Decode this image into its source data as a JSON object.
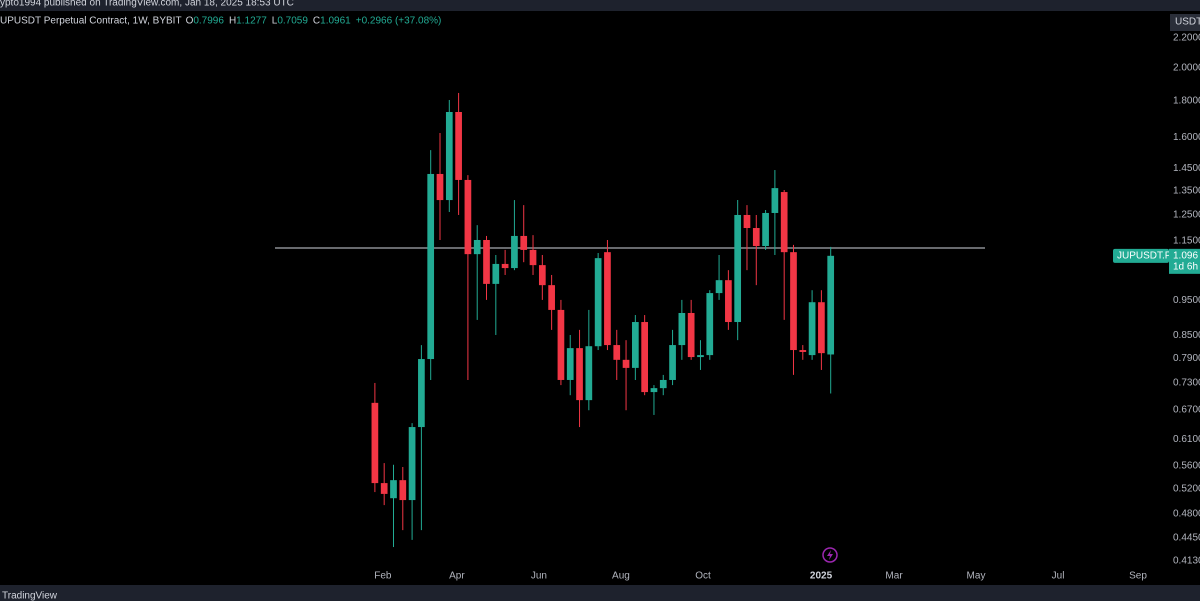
{
  "header": {
    "text": "ypto1994 published on TradingView.com, Jan 18, 2025 18:53 UTC"
  },
  "footer": {
    "brand": "TradingView"
  },
  "chart_data": {
    "type": "candlestick",
    "title": "UPUSDT Perpetual Contract, 1W, BYBIT",
    "legend": [
      {
        "label": "O",
        "value": 0.7996
      },
      {
        "label": "H",
        "value": 1.1277
      },
      {
        "label": "L",
        "value": 0.7059
      },
      {
        "label": "C",
        "value": 1.0961
      }
    ],
    "change": "+0.2966 (+37.08%)",
    "currency": "USDT",
    "symbol_tag": "JUPUSDT.P",
    "last_price": 1.096,
    "countdown": "1d 6h",
    "hline": 1.124,
    "log_scale": true,
    "grid": false,
    "up_color": "#22ab94",
    "down_color": "#f23645",
    "x": [
      0,
      1,
      2,
      3,
      4,
      5,
      6,
      7,
      8,
      9,
      10,
      11,
      12,
      13,
      14,
      15,
      16,
      17,
      18,
      19,
      20,
      21,
      22,
      23,
      24,
      25,
      26,
      27,
      28,
      29,
      30,
      31,
      32,
      33,
      34,
      35,
      36,
      37,
      38,
      39,
      40,
      41,
      42,
      43,
      44,
      45,
      46,
      47,
      48,
      49
    ],
    "open": [
      0.685,
      0.53,
      0.505,
      0.535,
      0.502,
      0.634,
      0.788,
      1.424,
      1.31,
      1.736,
      1.397,
      1.102,
      1.153,
      1.002,
      1.068,
      1.054,
      1.168,
      1.117,
      1.064,
      0.998,
      0.922,
      0.737,
      0.816,
      0.691,
      0.821,
      1.109,
      0.824,
      0.786,
      0.766,
      0.887,
      0.709,
      0.718,
      0.737,
      0.824,
      0.913,
      0.793,
      0.798,
      0.973,
      1.014,
      0.887,
      1.249,
      1.198,
      1.131,
      1.257,
      1.344,
      1.109,
      0.811,
      0.798,
      0.945,
      0.7996
    ],
    "high": [
      0.73,
      0.565,
      0.562,
      0.558,
      0.642,
      0.824,
      1.537,
      1.623,
      1.804,
      1.845,
      1.419,
      1.209,
      1.168,
      1.099,
      1.117,
      1.31,
      1.289,
      1.171,
      1.099,
      1.031,
      0.952,
      0.851,
      0.865,
      0.922,
      1.106,
      1.153,
      0.865,
      0.837,
      0.907,
      0.907,
      0.725,
      0.749,
      0.865,
      0.952,
      0.952,
      0.837,
      0.982,
      1.099,
      1.047,
      1.31,
      1.289,
      1.249,
      1.269,
      1.442,
      1.353,
      1.135,
      0.824,
      0.982,
      0.982,
      1.1277
    ],
    "low": [
      0.515,
      0.494,
      0.432,
      0.456,
      0.442,
      0.456,
      0.737,
      1.153,
      1.261,
      1.249,
      0.737,
      0.893,
      0.952,
      0.851,
      1.031,
      1.047,
      1.074,
      1.031,
      0.952,
      0.865,
      0.725,
      0.702,
      0.634,
      0.669,
      0.811,
      0.811,
      0.737,
      0.669,
      0.737,
      0.702,
      0.659,
      0.702,
      0.725,
      0.786,
      0.786,
      0.761,
      0.786,
      0.952,
      0.865,
      0.837,
      1.047,
      0.998,
      1.117,
      1.099,
      0.893,
      0.749,
      0.786,
      0.786,
      0.761,
      0.7059
    ],
    "close": [
      0.53,
      0.512,
      0.535,
      0.502,
      0.634,
      0.788,
      1.424,
      1.31,
      1.736,
      1.397,
      1.102,
      1.153,
      1.002,
      1.068,
      1.054,
      1.168,
      1.117,
      1.064,
      0.998,
      0.922,
      0.737,
      0.816,
      0.691,
      0.821,
      1.088,
      0.824,
      0.786,
      0.766,
      0.887,
      0.709,
      0.718,
      0.737,
      0.824,
      0.913,
      0.793,
      0.798,
      0.973,
      1.014,
      0.887,
      1.249,
      1.198,
      1.131,
      1.257,
      1.361,
      1.109,
      0.811,
      0.806,
      0.945,
      0.803,
      1.0961
    ],
    "xlim": [
      -40.3,
      84.4
    ],
    "xticks": [
      {
        "value": 0.86,
        "label": "Feb"
      },
      {
        "value": 8.82,
        "label": "Apr"
      },
      {
        "value": 17.63,
        "label": "Jun"
      },
      {
        "value": 26.45,
        "label": "Aug"
      },
      {
        "value": 35.27,
        "label": "Oct"
      },
      {
        "value": 47.96,
        "label": "2025"
      },
      {
        "value": 55.81,
        "label": "Mar"
      },
      {
        "value": 64.62,
        "label": "May"
      },
      {
        "value": 73.44,
        "label": "Jul"
      },
      {
        "value": 82.04,
        "label": "Sep"
      }
    ],
    "ylim": [
      0.404,
      2.39
    ],
    "yticks": [
      {
        "value": 2.2,
        "label": "2.2000"
      },
      {
        "value": 2.0,
        "label": "2.0000"
      },
      {
        "value": 1.8,
        "label": "1.8000"
      },
      {
        "value": 1.6,
        "label": "1.6000"
      },
      {
        "value": 1.45,
        "label": "1.4500"
      },
      {
        "value": 1.35,
        "label": "1.3500"
      },
      {
        "value": 1.25,
        "label": "1.2500"
      },
      {
        "value": 1.15,
        "label": "1.1500"
      },
      {
        "value": 0.95,
        "label": "0.9500"
      },
      {
        "value": 0.85,
        "label": "0.8500"
      },
      {
        "value": 0.79,
        "label": "0.7900"
      },
      {
        "value": 0.73,
        "label": "0.7300"
      },
      {
        "value": 0.67,
        "label": "0.6700"
      },
      {
        "value": 0.61,
        "label": "0.6100"
      },
      {
        "value": 0.56,
        "label": "0.5600"
      },
      {
        "value": 0.52,
        "label": "0.5200"
      },
      {
        "value": 0.48,
        "label": "0.4800"
      },
      {
        "value": 0.445,
        "label": "0.4450"
      },
      {
        "value": 0.413,
        "label": "0.4130"
      }
    ]
  }
}
